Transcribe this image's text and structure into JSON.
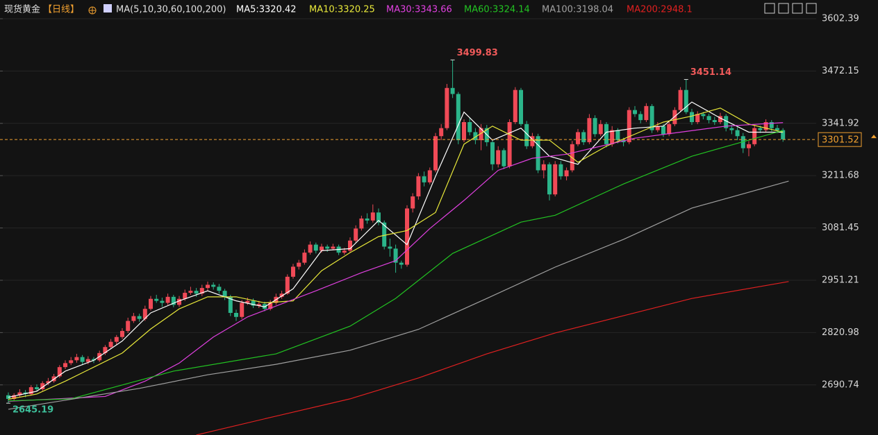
{
  "chart_data": {
    "type": "candlestick",
    "title": "现货黄金",
    "period": "【日线】",
    "ma_label": "MA(5,10,30,60,100,200)",
    "up_color": "#f04a57",
    "down_color": "#2bb58a",
    "ylim": [
      2566,
      3649
    ],
    "yticks": [
      3602.39,
      3472.15,
      3341.92,
      3211.68,
      3081.45,
      2951.21,
      2820.98,
      2690.74
    ],
    "grid": true,
    "last_price": 3301.52,
    "candles": [
      [
        2665,
        2672,
        2645.19,
        2656
      ],
      [
        2656,
        2670,
        2650,
        2665
      ],
      [
        2665,
        2680,
        2660,
        2672
      ],
      [
        2672,
        2678,
        2660,
        2668
      ],
      [
        2668,
        2690,
        2664,
        2685
      ],
      [
        2685,
        2692,
        2674,
        2680
      ],
      [
        2680,
        2700,
        2676,
        2695
      ],
      [
        2695,
        2708,
        2690,
        2700
      ],
      [
        2700,
        2718,
        2696,
        2712
      ],
      [
        2712,
        2740,
        2708,
        2735
      ],
      [
        2735,
        2752,
        2730,
        2745
      ],
      [
        2745,
        2760,
        2740,
        2752
      ],
      [
        2752,
        2768,
        2746,
        2760
      ],
      [
        2760,
        2765,
        2740,
        2748
      ],
      [
        2748,
        2762,
        2742,
        2755
      ],
      [
        2755,
        2760,
        2745,
        2752
      ],
      [
        2752,
        2776,
        2748,
        2770
      ],
      [
        2770,
        2790,
        2765,
        2785
      ],
      [
        2785,
        2805,
        2780,
        2798
      ],
      [
        2798,
        2815,
        2790,
        2810
      ],
      [
        2810,
        2832,
        2805,
        2825
      ],
      [
        2825,
        2858,
        2820,
        2850
      ],
      [
        2850,
        2870,
        2845,
        2862
      ],
      [
        2862,
        2868,
        2848,
        2855
      ],
      [
        2855,
        2888,
        2850,
        2880
      ],
      [
        2880,
        2912,
        2876,
        2905
      ],
      [
        2905,
        2915,
        2895,
        2900
      ],
      [
        2900,
        2908,
        2885,
        2895
      ],
      [
        2895,
        2918,
        2890,
        2910
      ],
      [
        2910,
        2915,
        2884,
        2890
      ],
      [
        2890,
        2912,
        2885,
        2905
      ],
      [
        2905,
        2928,
        2900,
        2920
      ],
      [
        2920,
        2935,
        2915,
        2925
      ],
      [
        2925,
        2932,
        2910,
        2918
      ],
      [
        2918,
        2940,
        2912,
        2932
      ],
      [
        2932,
        2948,
        2926,
        2940
      ],
      [
        2940,
        2946,
        2928,
        2935
      ],
      [
        2935,
        2942,
        2918,
        2925
      ],
      [
        2925,
        2930,
        2902,
        2910
      ],
      [
        2910,
        2915,
        2862,
        2870
      ],
      [
        2870,
        2878,
        2850,
        2860
      ],
      [
        2860,
        2902,
        2855,
        2895
      ],
      [
        2895,
        2908,
        2890,
        2900
      ],
      [
        2900,
        2906,
        2882,
        2888
      ],
      [
        2888,
        2900,
        2882,
        2892
      ],
      [
        2892,
        2898,
        2874,
        2880
      ],
      [
        2880,
        2902,
        2876,
        2895
      ],
      [
        2895,
        2918,
        2890,
        2910
      ],
      [
        2910,
        2925,
        2905,
        2918
      ],
      [
        2918,
        2966,
        2915,
        2960
      ],
      [
        2960,
        2992,
        2955,
        2985
      ],
      [
        2985,
        3002,
        2978,
        2995
      ],
      [
        2995,
        3028,
        2990,
        3020
      ],
      [
        3020,
        3048,
        3015,
        3040
      ],
      [
        3040,
        3045,
        3018,
        3025
      ],
      [
        3025,
        3042,
        3020,
        3035
      ],
      [
        3035,
        3040,
        3022,
        3030
      ],
      [
        3030,
        3042,
        3026,
        3035
      ],
      [
        3035,
        3040,
        3014,
        3020
      ],
      [
        3020,
        3032,
        3015,
        3025
      ],
      [
        3025,
        3058,
        3020,
        3050
      ],
      [
        3050,
        3088,
        3045,
        3080
      ],
      [
        3080,
        3112,
        3075,
        3105
      ],
      [
        3105,
        3118,
        3092,
        3100
      ],
      [
        3100,
        3140,
        3095,
        3120
      ],
      [
        3120,
        3130,
        3088,
        3095
      ],
      [
        3095,
        3100,
        3028,
        3035
      ],
      [
        3035,
        3055,
        3010,
        3030
      ],
      [
        3030,
        3040,
        2970,
        2995
      ],
      [
        2995,
        3000,
        2980,
        2990
      ],
      [
        2990,
        3138,
        2985,
        3130
      ],
      [
        3130,
        3168,
        3120,
        3160
      ],
      [
        3160,
        3218,
        3152,
        3210
      ],
      [
        3210,
        3222,
        3185,
        3195
      ],
      [
        3195,
        3232,
        3190,
        3225
      ],
      [
        3225,
        3318,
        3220,
        3310
      ],
      [
        3310,
        3340,
        3300,
        3330
      ],
      [
        3330,
        3440,
        3325,
        3430
      ],
      [
        3430,
        3499.83,
        3405,
        3415
      ],
      [
        3415,
        3420,
        3290,
        3300
      ],
      [
        3300,
        3352,
        3295,
        3345
      ],
      [
        3345,
        3355,
        3312,
        3320
      ],
      [
        3320,
        3330,
        3290,
        3300
      ],
      [
        3300,
        3340,
        3275,
        3330
      ],
      [
        3330,
        3338,
        3285,
        3295
      ],
      [
        3295,
        3300,
        3225,
        3240
      ],
      [
        3240,
        3285,
        3232,
        3275
      ],
      [
        3275,
        3280,
        3228,
        3235
      ],
      [
        3235,
        3352,
        3230,
        3345
      ],
      [
        3345,
        3432,
        3340,
        3425
      ],
      [
        3425,
        3430,
        3335,
        3340
      ],
      [
        3340,
        3348,
        3278,
        3285
      ],
      [
        3285,
        3318,
        3280,
        3310
      ],
      [
        3310,
        3316,
        3218,
        3225
      ],
      [
        3225,
        3250,
        3205,
        3240
      ],
      [
        3240,
        3245,
        3150,
        3165
      ],
      [
        3165,
        3248,
        3160,
        3240
      ],
      [
        3240,
        3248,
        3202,
        3210
      ],
      [
        3210,
        3232,
        3200,
        3225
      ],
      [
        3225,
        3298,
        3220,
        3290
      ],
      [
        3290,
        3328,
        3285,
        3320
      ],
      [
        3320,
        3326,
        3288,
        3295
      ],
      [
        3295,
        3365,
        3290,
        3355
      ],
      [
        3355,
        3362,
        3308,
        3315
      ],
      [
        3315,
        3350,
        3310,
        3340
      ],
      [
        3340,
        3345,
        3282,
        3290
      ],
      [
        3290,
        3335,
        3284,
        3325
      ],
      [
        3325,
        3330,
        3292,
        3300
      ],
      [
        3300,
        3306,
        3285,
        3295
      ],
      [
        3295,
        3382,
        3290,
        3375
      ],
      [
        3375,
        3385,
        3358,
        3365
      ],
      [
        3365,
        3372,
        3342,
        3350
      ],
      [
        3350,
        3392,
        3345,
        3385
      ],
      [
        3385,
        3390,
        3318,
        3325
      ],
      [
        3325,
        3345,
        3320,
        3335
      ],
      [
        3335,
        3340,
        3308,
        3315
      ],
      [
        3315,
        3348,
        3310,
        3340
      ],
      [
        3340,
        3382,
        3335,
        3375
      ],
      [
        3375,
        3432,
        3370,
        3425
      ],
      [
        3425,
        3451.14,
        3365,
        3370
      ],
      [
        3370,
        3378,
        3338,
        3345
      ],
      [
        3345,
        3372,
        3340,
        3365
      ],
      [
        3365,
        3370,
        3352,
        3360
      ],
      [
        3360,
        3366,
        3342,
        3350
      ],
      [
        3350,
        3358,
        3338,
        3345
      ],
      [
        3345,
        3368,
        3340,
        3360
      ],
      [
        3360,
        3365,
        3322,
        3330
      ],
      [
        3330,
        3338,
        3315,
        3325
      ],
      [
        3325,
        3332,
        3300,
        3310
      ],
      [
        3310,
        3318,
        3268,
        3280
      ],
      [
        3280,
        3298,
        3260,
        3290
      ],
      [
        3290,
        3338,
        3285,
        3330
      ],
      [
        3330,
        3336,
        3318,
        3325
      ],
      [
        3325,
        3352,
        3320,
        3345
      ],
      [
        3345,
        3350,
        3322,
        3330
      ],
      [
        3330,
        3338,
        3318,
        3325
      ],
      [
        3325,
        3330,
        3296,
        3302
      ]
    ],
    "series": [
      {
        "name": "MA5:3320.42",
        "color": "#ffffff",
        "x": [
          0,
          5,
          10,
          15,
          20,
          25,
          30,
          35,
          40,
          45,
          50,
          55,
          60,
          65,
          70,
          75,
          80,
          85,
          90,
          95,
          100,
          105,
          110,
          115,
          120,
          125,
          130,
          136
        ],
        "values": [
          2660,
          2675,
          2725,
          2752,
          2800,
          2870,
          2900,
          2925,
          2900,
          2885,
          2930,
          3025,
          3030,
          3100,
          3040,
          3210,
          3370,
          3300,
          3330,
          3260,
          3240,
          3320,
          3330,
          3335,
          3395,
          3355,
          3320,
          3320
        ]
      },
      {
        "name": "MA10:3320.25",
        "color": "#e8e83a",
        "x": [
          0,
          5,
          10,
          15,
          20,
          25,
          30,
          35,
          40,
          45,
          50,
          55,
          60,
          65,
          70,
          75,
          80,
          85,
          90,
          95,
          100,
          105,
          110,
          115,
          120,
          125,
          130,
          136
        ],
        "values": [
          2655,
          2668,
          2700,
          2735,
          2770,
          2830,
          2880,
          2910,
          2910,
          2895,
          2900,
          2975,
          3020,
          3060,
          3075,
          3120,
          3290,
          3335,
          3300,
          3300,
          3245,
          3285,
          3315,
          3345,
          3360,
          3380,
          3340,
          3320
        ]
      },
      {
        "name": "MA30:3343.66",
        "color": "#e040e0",
        "x": [
          0,
          17,
          24,
          30,
          36,
          42,
          54,
          62,
          68,
          74,
          80,
          86,
          92,
          98,
          104,
          110,
          118,
          126,
          136
        ],
        "values": [
          2650,
          2662,
          2700,
          2745,
          2810,
          2860,
          2925,
          2970,
          3000,
          3080,
          3150,
          3225,
          3255,
          3265,
          3285,
          3305,
          3320,
          3335,
          3343.66
        ]
      },
      {
        "name": "MA60:3324.14",
        "color": "#22c322",
        "x": [
          0,
          11,
          29,
          47,
          60,
          68,
          78,
          90,
          96,
          108,
          120,
          136
        ],
        "values": [
          2651,
          2656,
          2725,
          2768,
          2837,
          2906,
          3018,
          3096,
          3113,
          3191,
          3260,
          3324.14
        ]
      },
      {
        "name": "MA100:3198.04",
        "color": "#a0a0a0",
        "x": [
          0,
          23,
          35,
          47,
          60,
          72,
          84,
          96,
          108,
          120,
          137
        ],
        "values": [
          2630,
          2682,
          2716,
          2742,
          2777,
          2829,
          2906,
          2984,
          3053,
          3131,
          3198.04
        ]
      },
      {
        "name": "MA200:2948.1",
        "color": "#e02020",
        "x": [
          33,
          47,
          60,
          72,
          84,
          96,
          108,
          120,
          137
        ],
        "values": [
          2566,
          2613,
          2656,
          2708,
          2768,
          2820,
          2863,
          2906,
          2948.1
        ]
      }
    ]
  }
}
